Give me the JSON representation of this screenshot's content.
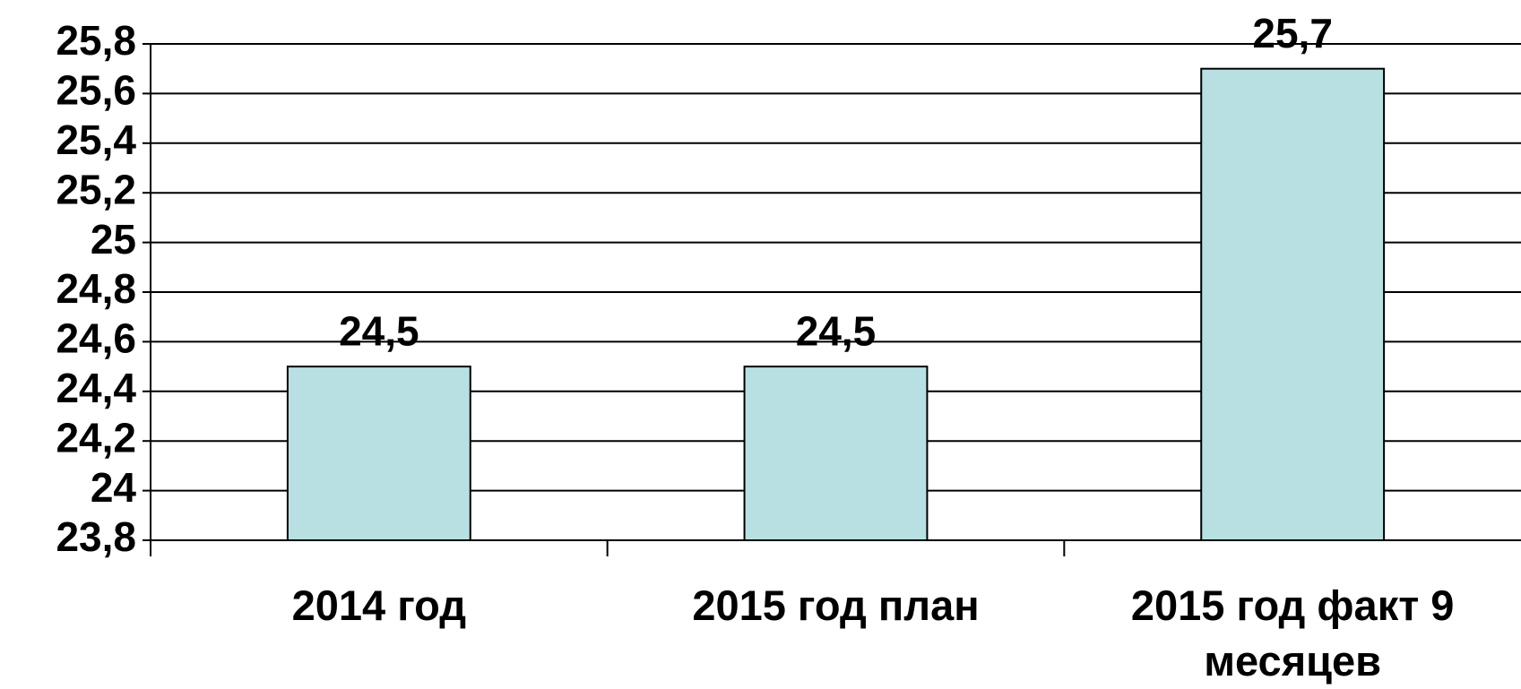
{
  "chart_data": {
    "type": "bar",
    "categories": [
      "2014 год",
      "2015 год план",
      "2015 год факт 9 месяцев"
    ],
    "values": [
      24.5,
      24.5,
      25.7
    ],
    "value_labels": [
      "24,5",
      "24,5",
      "25,7"
    ],
    "color": "#b8e0e2",
    "ylim": [
      23.8,
      25.8
    ],
    "yticks": [
      {
        "value": 23.8,
        "label": "23,8"
      },
      24,
      {
        "value": 24.2,
        "label": "24,2"
      },
      {
        "value": 24.4,
        "label": "24,4"
      },
      {
        "value": 24.6,
        "label": "24,6"
      },
      {
        "value": 24.8,
        "label": "24,8"
      },
      25,
      {
        "value": 25.2,
        "label": "25,2"
      },
      {
        "value": 25.4,
        "label": "25,4"
      },
      {
        "value": 25.6,
        "label": "25,6"
      },
      {
        "value": 25.8,
        "label": "25,8"
      }
    ],
    "grid": true
  }
}
